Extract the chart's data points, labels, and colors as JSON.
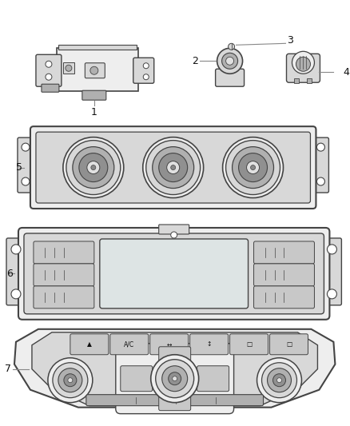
{
  "background_color": "#ffffff",
  "fig_width": 4.38,
  "fig_height": 5.33,
  "dpi": 100,
  "outline": "#444444",
  "fill_light": "#eeeeee",
  "fill_medium": "#d8d8d8",
  "fill_dark": "#b0b0b0",
  "fill_darker": "#888888",
  "knob_outer": "#c0c0c0",
  "knob_mid": "#909090",
  "knob_inner": "#e0e0e0",
  "screen_fill": "#dde4e4",
  "button_fill": "#c8c8c8",
  "white": "#ffffff",
  "label_color": "#111111",
  "label_line_color": "#888888"
}
